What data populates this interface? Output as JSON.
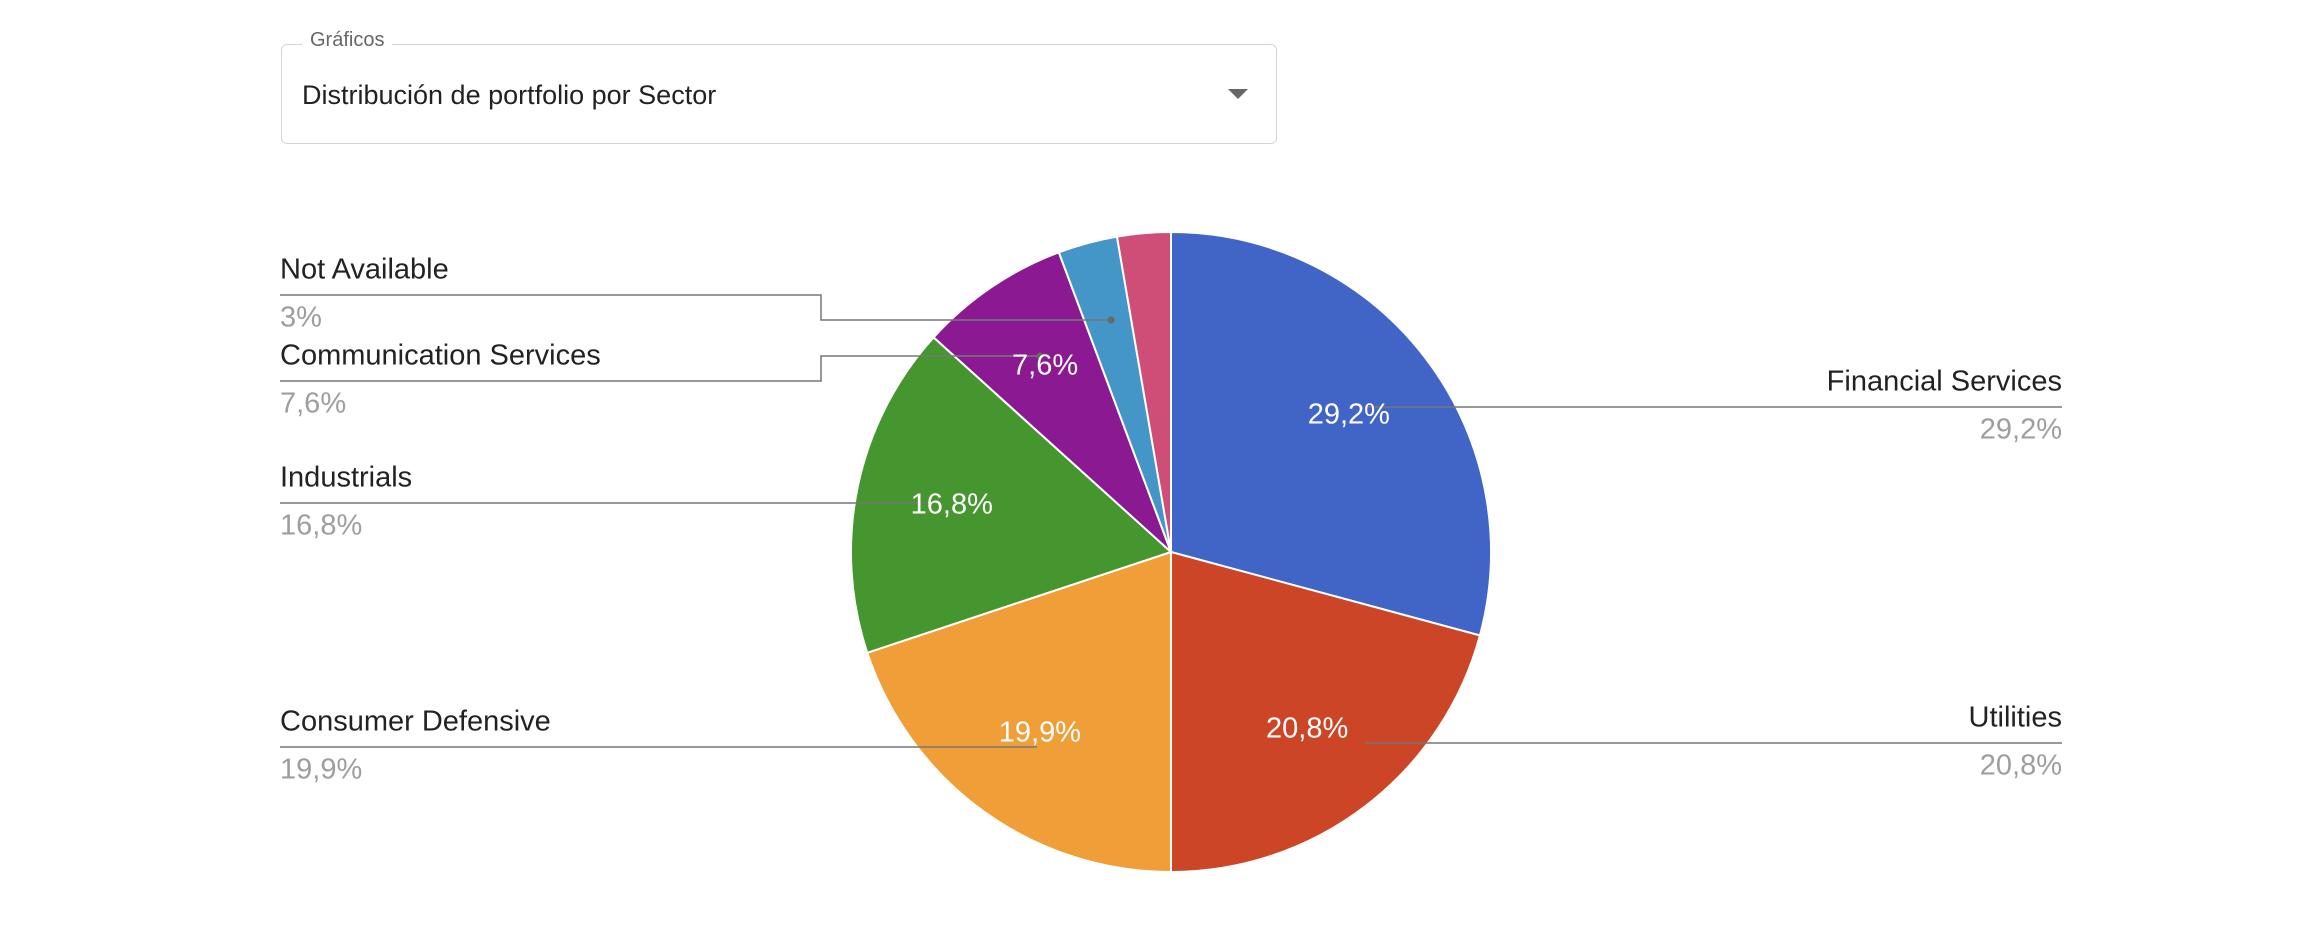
{
  "dropdown": {
    "label": "Gráficos",
    "selected": "Distribución de portfolio por Sector"
  },
  "chart_data": {
    "type": "pie",
    "categories": [
      "Financial Services",
      "Utilities",
      "Consumer Defensive",
      "Industrials",
      "Communication Services",
      "Not Available",
      null
    ],
    "values": [
      29.2,
      20.8,
      19.9,
      16.8,
      7.6,
      3,
      2.7
    ],
    "value_labels": [
      "29,2%",
      "20,8%",
      "19,9%",
      "16,8%",
      "7,6%",
      "3%",
      null
    ],
    "colors": [
      "#4065c6",
      "#cc4526",
      "#f09e38",
      "#46962f",
      "#8b1a92",
      "#4396c7",
      "#cf4e78"
    ]
  }
}
